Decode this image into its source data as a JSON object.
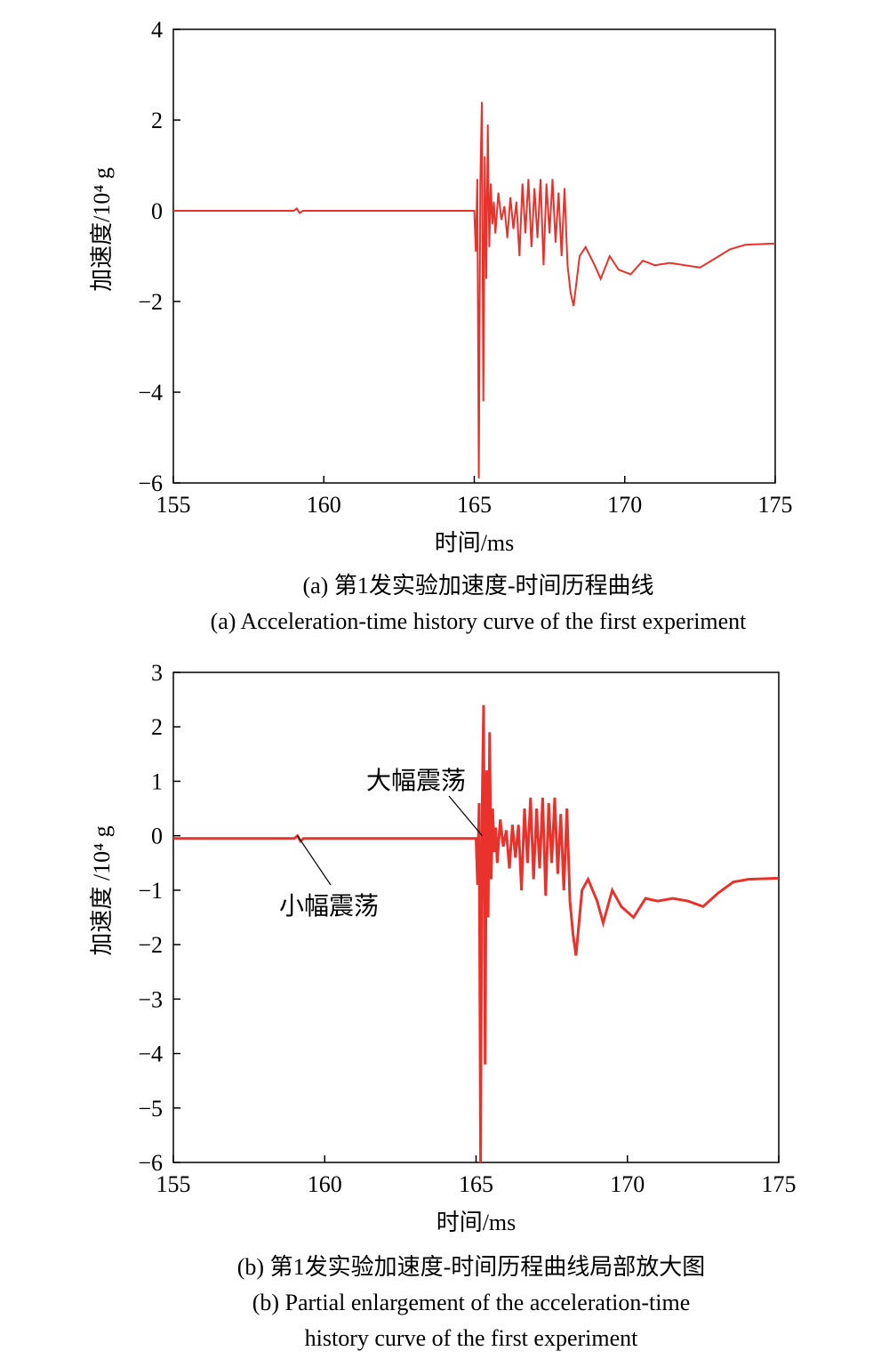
{
  "colors": {
    "series": "#e8322b",
    "axis": "#000000"
  },
  "chart_data": [
    {
      "type": "line",
      "xlabel": "时间/ms",
      "ylabel": "加速度/10⁴ g",
      "xlim": [
        155,
        175
      ],
      "ylim": [
        -6,
        4
      ],
      "xticks": [
        155,
        160,
        165,
        170,
        175
      ],
      "yticks": [
        -6,
        -4,
        -2,
        0,
        2,
        4
      ],
      "caption_cn": "(a) 第1发实验加速度-时间历程曲线",
      "caption_en": "(a) Acceleration-time history curve of the first experiment",
      "series": [
        {
          "x": [
            155,
            159.0,
            159.1,
            159.2,
            159.3,
            165.0,
            165.05,
            165.1,
            165.15,
            165.2,
            165.25,
            165.3,
            165.35,
            165.4,
            165.45,
            165.5,
            165.55,
            165.6,
            165.65,
            165.7,
            165.8,
            165.9,
            166.0,
            166.1,
            166.2,
            166.3,
            166.4,
            166.5,
            166.6,
            166.7,
            166.8,
            166.9,
            167.0,
            167.1,
            167.2,
            167.3,
            167.4,
            167.5,
            167.6,
            167.7,
            167.8,
            167.9,
            168.0,
            168.1,
            168.2,
            168.3,
            168.5,
            168.7,
            169.0,
            169.2,
            169.5,
            169.8,
            170.2,
            170.6,
            171.0,
            171.5,
            172.0,
            172.5,
            173.0,
            173.5,
            174.0,
            175.0
          ],
          "y": [
            0,
            0,
            0.05,
            -0.05,
            0,
            0,
            -0.9,
            0.7,
            -5.9,
            0.6,
            2.4,
            -4.2,
            1.2,
            -1.5,
            1.9,
            -0.8,
            0.6,
            -0.3,
            0.2,
            -0.5,
            0.4,
            -0.2,
            0.1,
            -0.6,
            0.3,
            -0.4,
            0.2,
            -1.0,
            0.6,
            -0.5,
            0.7,
            -0.8,
            0.5,
            -0.6,
            0.7,
            -1.2,
            0.6,
            -0.5,
            0.7,
            -0.7,
            0.4,
            -1.0,
            0.5,
            -1.2,
            -1.8,
            -2.1,
            -1.0,
            -0.8,
            -1.2,
            -1.5,
            -1.0,
            -1.3,
            -1.4,
            -1.1,
            -1.2,
            -1.15,
            -1.2,
            -1.25,
            -1.05,
            -0.85,
            -0.75,
            -0.72
          ]
        }
      ]
    },
    {
      "type": "line",
      "xlabel": "时间/ms",
      "ylabel": "加速度 /10⁴ g",
      "xlim": [
        155,
        175
      ],
      "ylim": [
        -6,
        3
      ],
      "xticks": [
        155,
        160,
        165,
        170,
        175
      ],
      "yticks": [
        -6,
        -5,
        -4,
        -3,
        -2,
        -1,
        0,
        1,
        2,
        3
      ],
      "caption_cn": "(b) 第1发实验加速度-时间历程曲线局部放大图",
      "caption_en_line1": "(b) Partial enlargement of the acceleration-time",
      "caption_en_line2": "history curve of the first experiment",
      "annotations": [
        {
          "text": "大幅震荡",
          "x": 165.2,
          "y": 0
        },
        {
          "text": "小幅震荡",
          "x": 159.1,
          "y": 0
        }
      ],
      "series": [
        {
          "x": [
            155,
            159.0,
            159.1,
            159.2,
            159.3,
            165.0,
            165.05,
            165.1,
            165.15,
            165.2,
            165.25,
            165.3,
            165.35,
            165.4,
            165.45,
            165.5,
            165.55,
            165.6,
            165.65,
            165.7,
            165.8,
            165.9,
            166.0,
            166.1,
            166.2,
            166.3,
            166.4,
            166.5,
            166.6,
            166.7,
            166.8,
            166.9,
            167.0,
            167.1,
            167.2,
            167.3,
            167.4,
            167.5,
            167.6,
            167.7,
            167.8,
            167.9,
            168.0,
            168.1,
            168.2,
            168.3,
            168.5,
            168.7,
            169.0,
            169.2,
            169.5,
            169.8,
            170.2,
            170.6,
            171.0,
            171.5,
            172.0,
            172.5,
            173.0,
            173.5,
            174.0,
            175.0
          ],
          "y": [
            -0.05,
            -0.05,
            0.0,
            -0.1,
            -0.05,
            -0.05,
            -0.9,
            0.6,
            -6.0,
            0.5,
            2.4,
            -4.2,
            1.2,
            -1.5,
            1.9,
            -0.8,
            0.5,
            -0.3,
            0.15,
            -0.5,
            0.3,
            -0.2,
            0.1,
            -0.6,
            0.2,
            -0.4,
            0.2,
            -1.0,
            0.5,
            -0.5,
            0.7,
            -0.8,
            0.5,
            -0.6,
            0.7,
            -1.1,
            0.6,
            -0.5,
            0.7,
            -0.7,
            0.4,
            -1.0,
            0.5,
            -1.2,
            -1.8,
            -2.2,
            -1.0,
            -0.8,
            -1.2,
            -1.6,
            -1.0,
            -1.3,
            -1.5,
            -1.15,
            -1.2,
            -1.15,
            -1.2,
            -1.3,
            -1.05,
            -0.85,
            -0.8,
            -0.78
          ]
        }
      ]
    }
  ]
}
